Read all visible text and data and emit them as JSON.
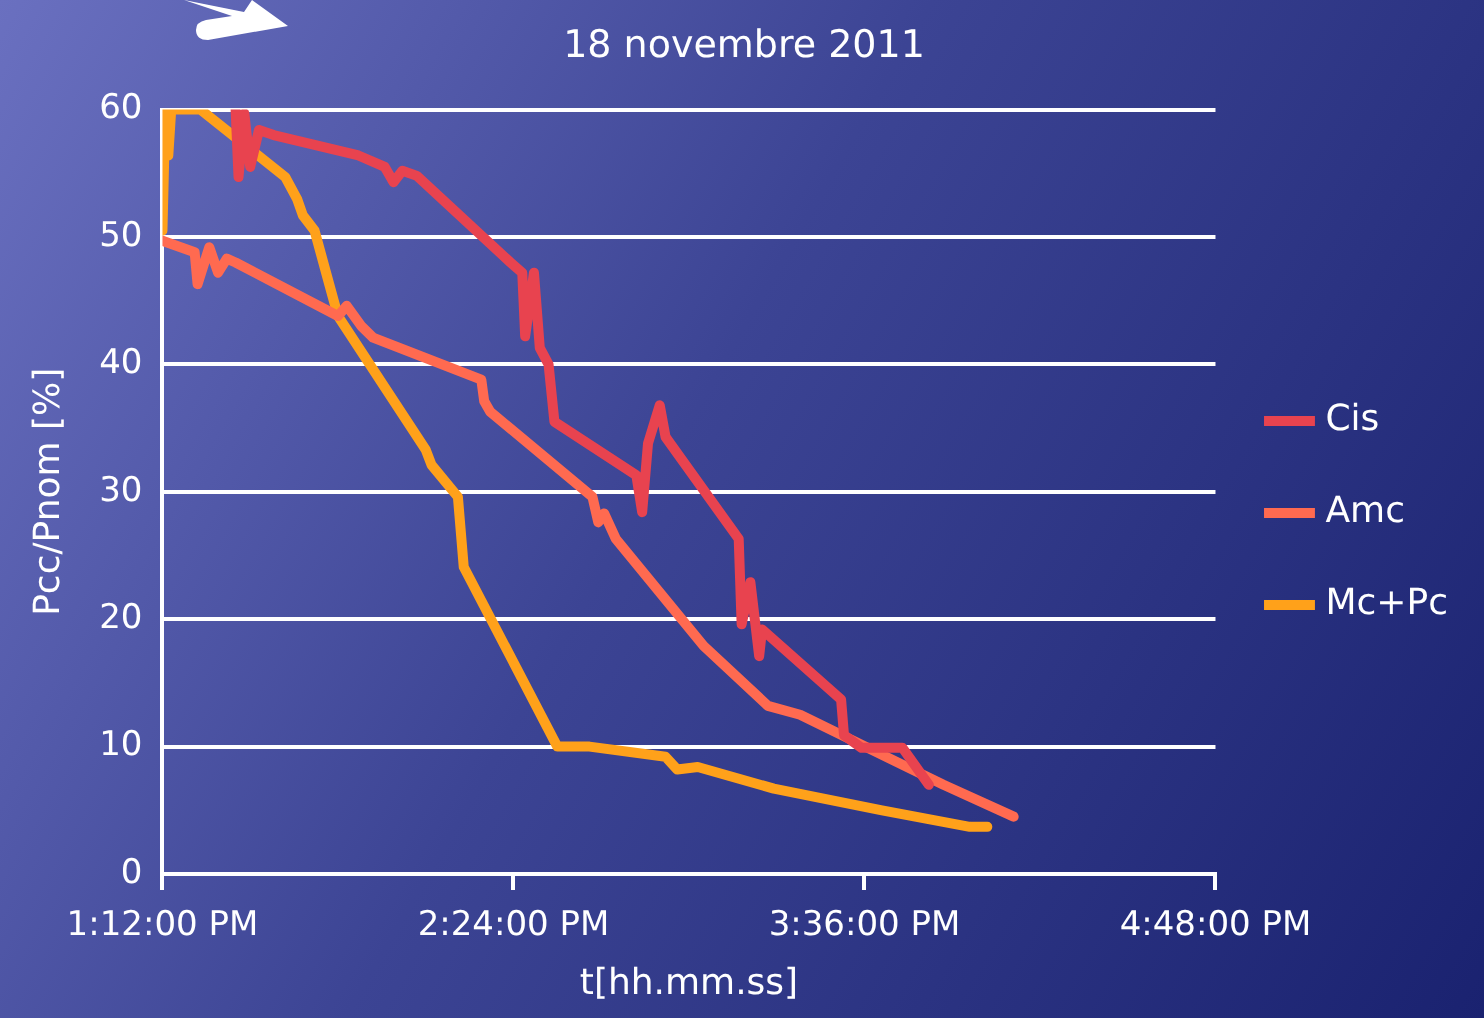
{
  "chart_data": {
    "type": "line",
    "title": "18 novembre 2011",
    "xlabel": "t[hh.mm.ss]",
    "ylabel": "Pcc/Pnom [%]",
    "xlim": [
      13.2,
      16.8
    ],
    "xticks": [
      {
        "value": 13.2,
        "label": "1:12:00 PM"
      },
      {
        "value": 14.4,
        "label": "2:24:00 PM"
      },
      {
        "value": 15.6,
        "label": "3:36:00 PM"
      },
      {
        "value": 16.8,
        "label": "4:48:00 PM"
      }
    ],
    "ylim": [
      0,
      60
    ],
    "yticks": [
      0,
      10,
      20,
      30,
      40,
      50,
      60
    ],
    "grid": "y",
    "legend": "right",
    "marker": "none",
    "line_style": "solid",
    "series": [
      {
        "name": "Cis",
        "color": "#e8434f",
        "x": [
          13.45,
          13.46,
          13.48,
          13.5,
          13.53,
          13.58,
          13.87,
          13.96,
          13.99,
          14.02,
          14.07,
          14.39,
          14.43,
          14.44,
          14.47,
          14.49,
          14.52,
          14.54,
          14.82,
          14.84,
          14.86,
          14.9,
          14.92,
          15.17,
          15.18,
          15.21,
          15.24,
          15.25,
          15.52,
          15.53,
          15.59,
          15.73,
          15.82
        ],
        "values": [
          60,
          54.7,
          59.7,
          55.5,
          58.4,
          58,
          56.4,
          55.5,
          54.3,
          55.2,
          54.8,
          48,
          47.2,
          42.2,
          47.2,
          41.3,
          40,
          35.5,
          31.3,
          28.4,
          33.8,
          36.8,
          34.3,
          26.3,
          19.6,
          22.9,
          17.1,
          19.2,
          13.7,
          10.9,
          9.9,
          9.9,
          7.0
        ]
      },
      {
        "name": "Amc",
        "color": "#ff6a50",
        "x": [
          13.2,
          13.31,
          13.32,
          13.36,
          13.39,
          13.42,
          13.45,
          13.8,
          13.83,
          13.88,
          13.92,
          14.29,
          14.3,
          14.32,
          14.67,
          14.69,
          14.71,
          14.75,
          15.05,
          15.27,
          15.38,
          15.87,
          16.11
        ],
        "values": [
          49.7,
          48.8,
          46.3,
          49.2,
          47.2,
          48.3,
          48,
          43.8,
          44.6,
          43,
          42.1,
          38.8,
          37.1,
          36.3,
          29.6,
          27.6,
          28.3,
          26.3,
          17.9,
          13.2,
          12.5,
          7.0,
          4.5
        ]
      },
      {
        "name": "Mc+Pc",
        "color": "#ffa11a",
        "x": [
          13.2,
          13.21,
          13.22,
          13.23,
          13.33,
          13.62,
          13.66,
          13.68,
          13.72,
          13.77,
          13.8,
          14.1,
          14.12,
          14.21,
          14.23,
          14.55,
          14.59,
          14.66,
          14.92,
          14.96,
          15.03,
          15.29,
          15.66,
          15.96,
          16.02
        ],
        "values": [
          50.5,
          60,
          56.4,
          60,
          60,
          54.7,
          53,
          51.7,
          50.5,
          46.3,
          43.8,
          33.3,
          32.1,
          29.6,
          24.1,
          10,
          10,
          10,
          9.2,
          8.2,
          8.4,
          6.7,
          5,
          3.7,
          3.7
        ]
      }
    ]
  }
}
